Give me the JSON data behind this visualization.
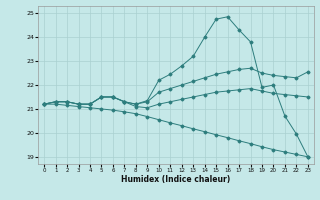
{
  "background_color": "#c5e8e8",
  "grid_color": "#aad0d0",
  "line_color": "#2d7d7d",
  "xlabel": "Humidex (Indice chaleur)",
  "xlim": [
    -0.5,
    23.5
  ],
  "ylim": [
    18.7,
    25.3
  ],
  "yticks": [
    19,
    20,
    21,
    22,
    23,
    24,
    25
  ],
  "xticks": [
    0,
    1,
    2,
    3,
    4,
    5,
    6,
    7,
    8,
    9,
    10,
    11,
    12,
    13,
    14,
    15,
    16,
    17,
    18,
    19,
    20,
    21,
    22,
    23
  ],
  "line1": {
    "x": [
      0,
      1,
      2,
      3,
      4,
      5,
      6,
      7,
      8,
      9,
      10,
      11,
      12,
      13,
      14,
      15,
      16,
      17,
      18,
      19,
      20,
      21,
      22,
      23
    ],
    "y": [
      21.2,
      21.3,
      21.3,
      21.2,
      21.2,
      21.5,
      21.5,
      21.3,
      21.2,
      21.35,
      22.2,
      22.45,
      22.8,
      23.2,
      24.0,
      24.75,
      24.85,
      24.3,
      23.8,
      21.9,
      22.0,
      20.7,
      19.95,
      19.0
    ]
  },
  "line2": {
    "x": [
      0,
      1,
      2,
      3,
      4,
      5,
      6,
      7,
      8,
      9,
      10,
      11,
      12,
      13,
      14,
      15,
      16,
      17,
      18,
      19,
      20,
      21,
      22,
      23
    ],
    "y": [
      21.2,
      21.3,
      21.3,
      21.2,
      21.2,
      21.5,
      21.5,
      21.3,
      21.2,
      21.3,
      21.7,
      21.85,
      22.0,
      22.15,
      22.3,
      22.45,
      22.55,
      22.65,
      22.7,
      22.5,
      22.4,
      22.35,
      22.3,
      22.55
    ]
  },
  "line3": {
    "x": [
      0,
      1,
      2,
      3,
      4,
      5,
      6,
      7,
      8,
      9,
      10,
      11,
      12,
      13,
      14,
      15,
      16,
      17,
      18,
      19,
      20,
      21,
      22,
      23
    ],
    "y": [
      21.2,
      21.3,
      21.3,
      21.2,
      21.2,
      21.5,
      21.5,
      21.3,
      21.1,
      21.05,
      21.2,
      21.3,
      21.4,
      21.5,
      21.6,
      21.7,
      21.75,
      21.8,
      21.85,
      21.75,
      21.65,
      21.6,
      21.55,
      21.5
    ]
  },
  "line4": {
    "x": [
      0,
      1,
      2,
      3,
      4,
      5,
      6,
      7,
      8,
      9,
      10,
      11,
      12,
      13,
      14,
      15,
      16,
      17,
      18,
      19,
      20,
      21,
      22,
      23
    ],
    "y": [
      21.2,
      21.2,
      21.15,
      21.1,
      21.05,
      21.0,
      20.95,
      20.88,
      20.8,
      20.68,
      20.55,
      20.42,
      20.3,
      20.17,
      20.05,
      19.92,
      19.8,
      19.67,
      19.55,
      19.42,
      19.3,
      19.2,
      19.1,
      19.0
    ]
  }
}
